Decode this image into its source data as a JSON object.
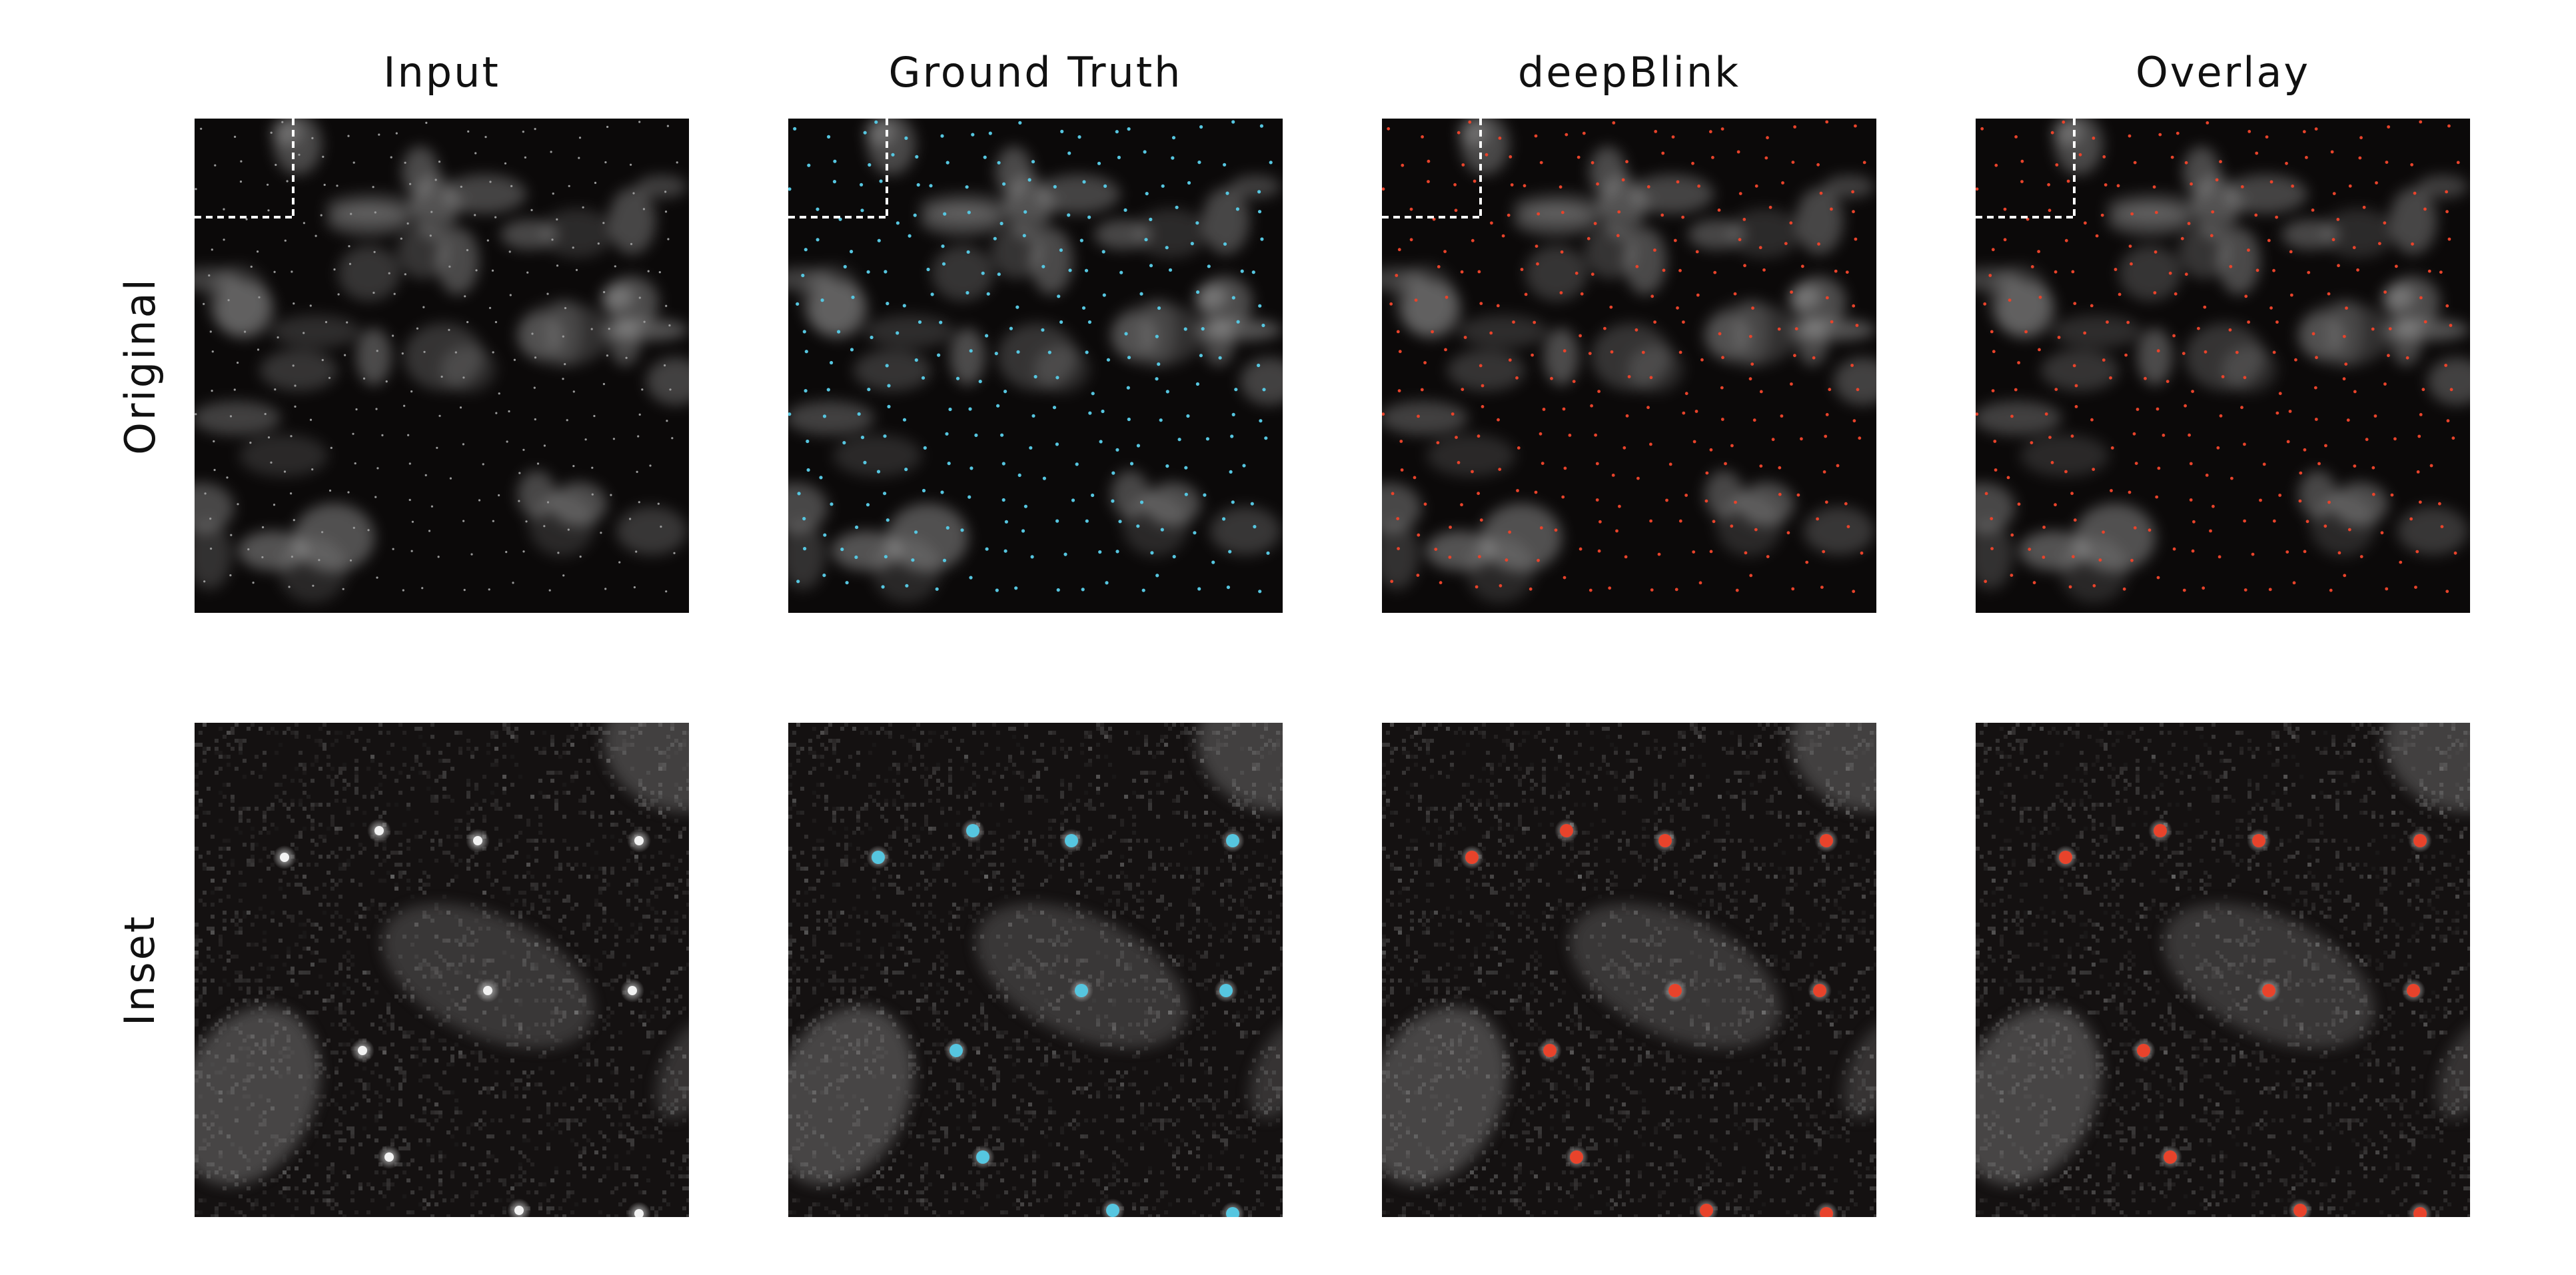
{
  "columns": [
    {
      "title": "Input"
    },
    {
      "title": "Ground Truth"
    },
    {
      "title": "deepBlink"
    },
    {
      "title": "Overlay"
    }
  ],
  "rows": [
    {
      "label": "Original"
    },
    {
      "label": "Inset"
    }
  ],
  "colors": {
    "background": "#0b0909",
    "ground_truth_marker": "#56c6e0",
    "prediction_marker": "#e8432b",
    "inset_box": "#ffffff"
  }
}
